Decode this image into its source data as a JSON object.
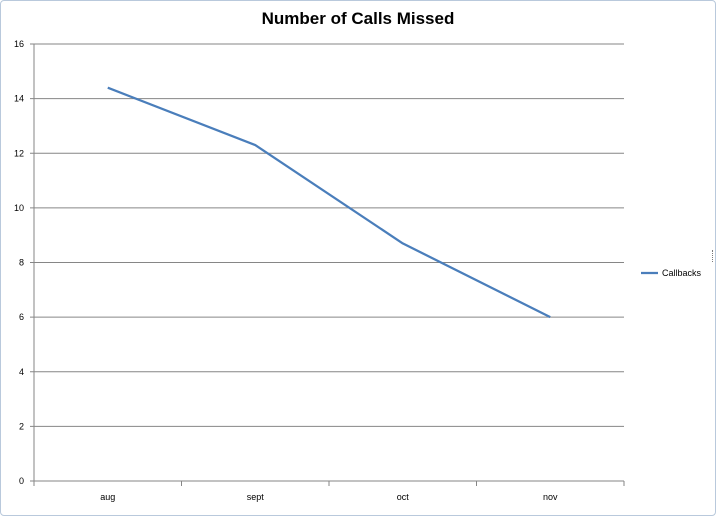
{
  "chart_data": {
    "type": "line",
    "title": "Number of Calls Missed",
    "categories": [
      "aug",
      "sept",
      "oct",
      "nov"
    ],
    "series": [
      {
        "name": "Callbacks",
        "values": [
          14.4,
          12.3,
          8.7,
          6.0
        ],
        "color": "#4a7ebb"
      }
    ],
    "ylim": [
      0,
      16
    ],
    "yticks": [
      0,
      2,
      4,
      6,
      8,
      10,
      12,
      14,
      16
    ],
    "grid": true,
    "legend": "right"
  }
}
